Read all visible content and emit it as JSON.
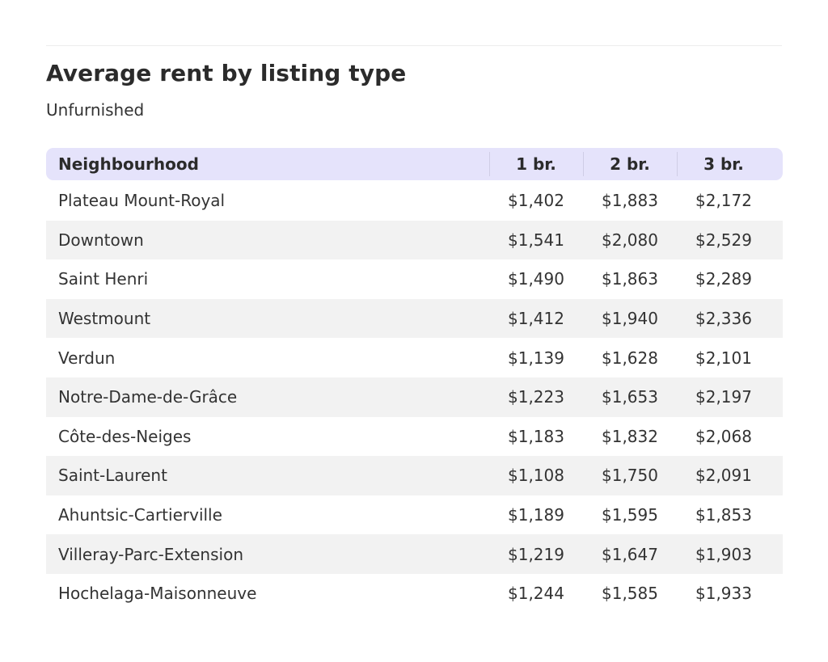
{
  "chart_data": {
    "type": "table",
    "title": "Average rent by listing type",
    "subtitle": "Unfurnished",
    "columns": [
      "Neighbourhood",
      "1 br.",
      "2 br.",
      "3 br."
    ],
    "rows": [
      [
        "Plateau Mount-Royal",
        "$1,402",
        "$1,883",
        "$2,172"
      ],
      [
        "Downtown",
        "$1,541",
        "$2,080",
        "$2,529"
      ],
      [
        "Saint Henri",
        "$1,490",
        "$1,863",
        "$2,289"
      ],
      [
        "Westmount",
        "$1,412",
        "$1,940",
        "$2,336"
      ],
      [
        "Verdun",
        "$1,139",
        "$1,628",
        "$2,101"
      ],
      [
        "Notre-Dame-de-Grâce",
        "$1,223",
        "$1,653",
        "$2,197"
      ],
      [
        "Côte-des-Neiges",
        "$1,183",
        "$1,832",
        "$2,068"
      ],
      [
        "Saint-Laurent",
        "$1,108",
        "$1,750",
        "$2,091"
      ],
      [
        "Ahuntsic-Cartierville",
        "$1,189",
        "$1,595",
        "$1,853"
      ],
      [
        "Villeray-Parc-Extension",
        "$1,219",
        "$1,647",
        "$1,903"
      ],
      [
        "Hochelaga-Maisonneuve",
        "$1,244",
        "$1,585",
        "$1,933"
      ]
    ]
  },
  "colors": {
    "header_background": "#e5e3fb",
    "stripe_background": "#f2f2f2",
    "text": "#333333"
  }
}
